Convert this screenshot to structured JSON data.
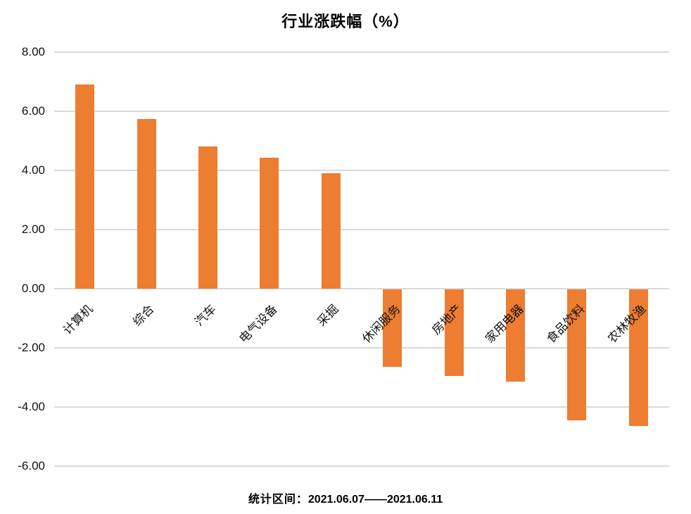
{
  "caption": {
    "prefix": "统计区间：",
    "range": "2021.06.07——2021.06.11"
  },
  "chart_data": {
    "type": "bar",
    "title": "行业涨跌幅（%）",
    "categories": [
      "计算机",
      "综合",
      "汽车",
      "电气设备",
      "采掘",
      "休闲服务",
      "房地产",
      "家用电器",
      "食品饮料",
      "农林牧渔"
    ],
    "values": [
      6.9,
      5.75,
      4.8,
      4.43,
      3.9,
      -2.65,
      -2.95,
      -3.15,
      -4.45,
      -4.65
    ],
    "xlabel": "",
    "ylabel": "",
    "ylim": [
      -6,
      8
    ],
    "ytick_labels": [
      "8.00",
      "6.00",
      "4.00",
      "2.00",
      "0.00",
      "-2.00",
      "-4.00",
      "-6.00"
    ],
    "grid": true,
    "legend_position": "none",
    "bar_color": "#ED7D31",
    "gridline_color": "#D9D9D9",
    "category_label_rotation_deg": -45
  }
}
